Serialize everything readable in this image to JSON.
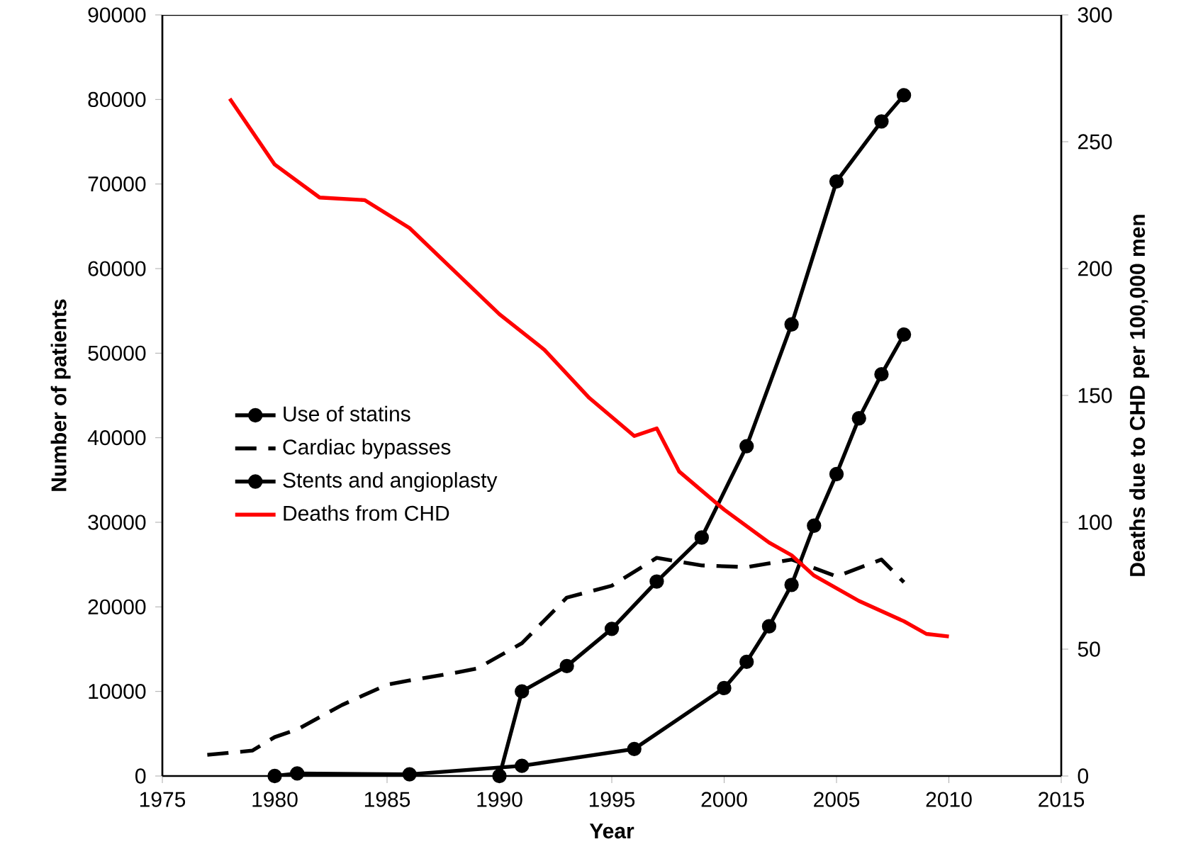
{
  "chart_data": {
    "type": "line",
    "xlabel": "Year",
    "ylabel": "Number of patients",
    "y2label": "Deaths due to CHD per 100,000 men",
    "xlim": [
      1975,
      2015
    ],
    "xticks": [
      1975,
      1980,
      1985,
      1990,
      1995,
      2000,
      2005,
      2010,
      2015
    ],
    "ylim": [
      0,
      90000
    ],
    "yticks": [
      0,
      10000,
      20000,
      30000,
      40000,
      50000,
      60000,
      70000,
      80000,
      90000
    ],
    "y2lim": [
      0,
      300
    ],
    "y2ticks": [
      0,
      50,
      100,
      150,
      200,
      250,
      300
    ],
    "grid": false,
    "legend": "left",
    "series": [
      {
        "name": "Use of statins",
        "color": "#000000",
        "marker": "circle",
        "line_style": "solid",
        "x": [
          1980,
          1981,
          1986,
          1991,
          1996,
          2000,
          2001,
          2002,
          2003,
          2004,
          2005,
          2006,
          2007,
          2008
        ],
        "values": [
          0,
          300,
          200,
          1200,
          3200,
          10400,
          13500,
          17700,
          22600,
          29600,
          35700,
          42300,
          47500,
          52200
        ]
      },
      {
        "name": "Cardiac bypasses",
        "color": "#000000",
        "marker": "none",
        "line_style": "dashed",
        "x": [
          1977,
          1979,
          1980,
          1981,
          1983,
          1985,
          1986,
          1988,
          1989,
          1991,
          1993,
          1995,
          1997,
          1999,
          2001,
          2003,
          2005,
          2007,
          2008
        ],
        "values": [
          2500,
          3000,
          4600,
          5500,
          8400,
          10800,
          11300,
          12200,
          12700,
          15700,
          21100,
          22500,
          25800,
          24900,
          24700,
          25600,
          23600,
          25600,
          22900
        ]
      },
      {
        "name": "Stents and angioplasty",
        "color": "#000000",
        "marker": "circle",
        "line_style": "solid",
        "x": [
          1990,
          1991,
          1993,
          1995,
          1997,
          1999,
          2001,
          2003,
          2005,
          2007,
          2008
        ],
        "values": [
          0,
          10000,
          13000,
          17400,
          23000,
          28200,
          39000,
          53400,
          70300,
          77400,
          80500
        ]
      },
      {
        "name": "Deaths from CHD",
        "color": "#ff0000",
        "marker": "none",
        "line_style": "solid",
        "axis": "y2",
        "x": [
          1978,
          1980,
          1982,
          1984,
          1986,
          1988,
          1990,
          1992,
          1994,
          1996,
          1997,
          1998,
          2000,
          2002,
          2003,
          2004,
          2006,
          2008,
          2009,
          2010
        ],
        "values": [
          267,
          241,
          228,
          227,
          216,
          199,
          182,
          168,
          149,
          134,
          137,
          120,
          105,
          92,
          87,
          79,
          69,
          61,
          56,
          55
        ]
      }
    ]
  }
}
